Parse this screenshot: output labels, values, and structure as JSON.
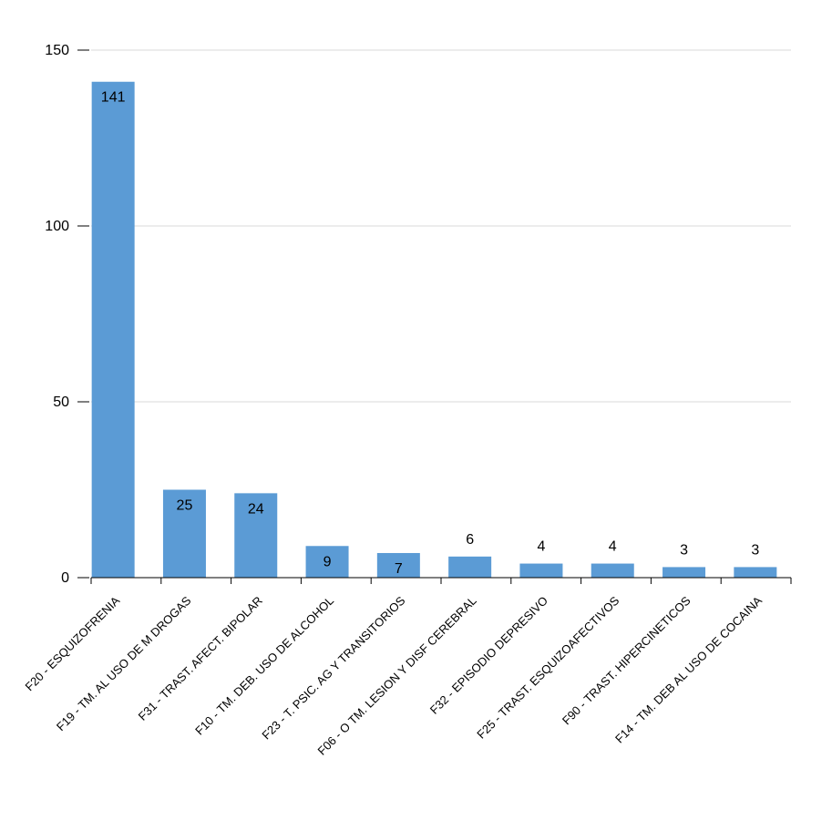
{
  "chart_data": {
    "type": "bar",
    "categories": [
      "F20 - ESQUIZOFRENIA",
      "F19 - TM. AL USO DE M DROGAS",
      "F31 - TRAST. AFECT. BIPOLAR",
      "F10 - TM. DEB. USO DE ALCOHOL",
      "F23 - T. PSIC. AG Y TRANSITORIOS",
      "F06 - O TM. LESION Y DISF CEREBRAL",
      "F32 - EPISODIO DEPRESIVO",
      "F25 - TRAST. ESQUIZOAFECTIVOS",
      "F90 - TRAST. HIPERCINETICOS",
      "F14 - TM. DEB AL USO DE COCAINA"
    ],
    "values": [
      141,
      25,
      24,
      9,
      7,
      6,
      4,
      4,
      3,
      3
    ],
    "ylim": [
      0,
      150
    ],
    "yticks": [
      0,
      50,
      100,
      150
    ],
    "grid": true,
    "bar_color": "#5b9bd5",
    "grid_color": "#d9d9d9",
    "axis_color": "#000000",
    "title": "",
    "xlabel": "",
    "ylabel": ""
  }
}
